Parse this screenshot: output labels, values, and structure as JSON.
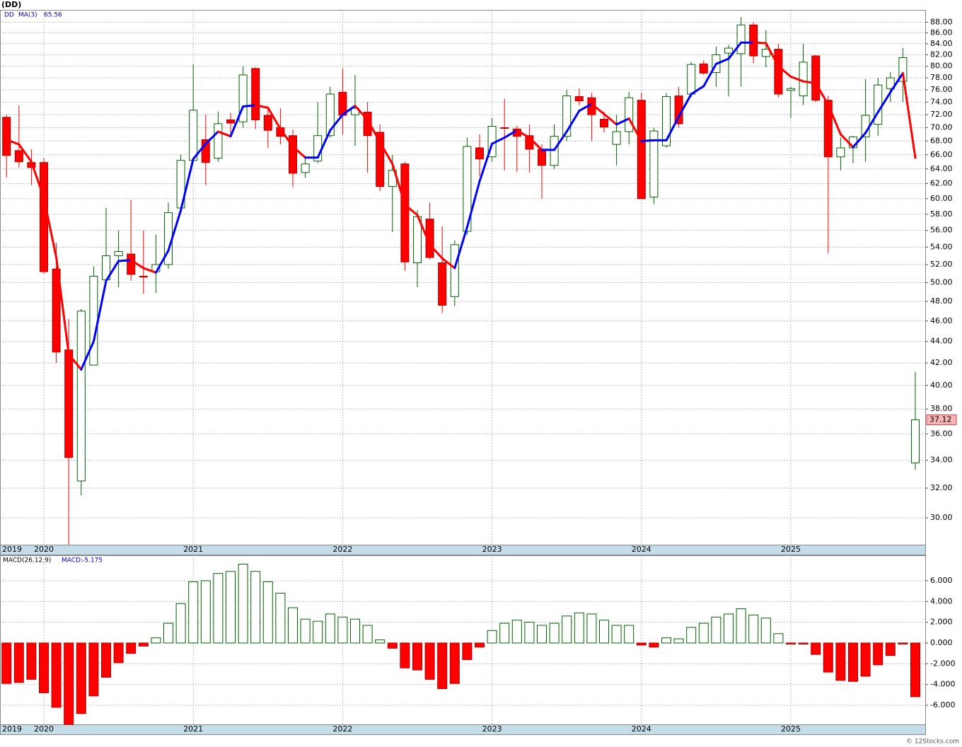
{
  "chart_data": [
    {
      "type": "candlestick",
      "title": "(DD)",
      "symbol": "DD",
      "log_scale": true,
      "grid": true,
      "categories": [
        "2019",
        null,
        null,
        "2020",
        null,
        null,
        null,
        null,
        null,
        null,
        null,
        null,
        null,
        null,
        null,
        "2021",
        null,
        null,
        null,
        null,
        null,
        null,
        null,
        null,
        null,
        null,
        null,
        "2022",
        null,
        null,
        null,
        null,
        null,
        null,
        null,
        null,
        null,
        null,
        null,
        "2023",
        null,
        null,
        null,
        null,
        null,
        null,
        null,
        null,
        null,
        null,
        null,
        "2024",
        null,
        null,
        null,
        null,
        null,
        null,
        null,
        null,
        null,
        null,
        null,
        "2025",
        null,
        null,
        null,
        null,
        null,
        null,
        null,
        null,
        null,
        null
      ],
      "open": [
        71.6,
        66.6,
        64.9,
        64.9,
        51.5,
        43.2,
        32.5,
        41.8,
        50.3,
        53.0,
        53.2,
        50.7,
        51.2,
        52.0,
        58.8,
        65.2,
        68.2,
        65.5,
        71.2,
        70.9,
        79.6,
        71.9,
        70.0,
        68.8,
        63.5,
        65.1,
        68.8,
        75.6,
        72.0,
        72.4,
        69.3,
        61.6,
        64.7,
        52.2,
        57.4,
        52.2,
        48.5,
        55.9,
        67.0,
        65.7,
        70.0,
        69.8,
        68.8,
        66.8,
        64.5,
        68.7,
        74.9,
        74.7,
        71.3,
        67.5,
        69.4,
        74.3,
        60.2,
        67.3,
        75.0,
        75.3,
        80.4,
        78.9,
        82.3,
        82.2,
        87.5,
        81.7,
        83.0,
        75.9,
        75.0,
        81.8,
        74.3,
        65.7,
        67.0,
        68.6,
        70.5,
        76.2,
        77.4,
        33.8
      ],
      "high": [
        72.0,
        73.5,
        66.8,
        65.5,
        54.5,
        46.2,
        47.2,
        51.8,
        58.8,
        56.0,
        59.8,
        56.0,
        55.5,
        59.5,
        66.0,
        80.3,
        72.0,
        72.5,
        72.3,
        80.0,
        79.8,
        73.0,
        73.0,
        69.7,
        65.8,
        74.0,
        76.5,
        79.6,
        78.5,
        74.0,
        70.5,
        66.0,
        65.0,
        58.5,
        59.5,
        56.5,
        54.8,
        68.5,
        69.0,
        71.5,
        74.5,
        70.3,
        70.5,
        67.5,
        70.5,
        76.0,
        76.2,
        75.5,
        72.5,
        72.0,
        75.7,
        75.5,
        70.0,
        75.5,
        76.5,
        80.7,
        81.0,
        83.5,
        83.8,
        89.0,
        88.0,
        86.5,
        84.0,
        76.5,
        84.0,
        82.0,
        75.0,
        68.5,
        68.8,
        77.8,
        78.0,
        79.0,
        83.2,
        41.2
      ],
      "low": [
        62.8,
        64.2,
        61.8,
        51.0,
        42.0,
        28.3,
        31.5,
        41.8,
        50.0,
        49.5,
        50.2,
        48.8,
        48.9,
        51.5,
        58.5,
        65.0,
        61.8,
        65.0,
        69.0,
        70.0,
        69.8,
        67.0,
        67.5,
        61.5,
        62.8,
        64.8,
        68.5,
        69.0,
        67.3,
        63.5,
        61.0,
        55.8,
        51.3,
        49.5,
        52.6,
        46.8,
        47.5,
        55.5,
        63.0,
        65.0,
        63.8,
        63.6,
        63.5,
        60.0,
        64.0,
        68.0,
        73.5,
        68.0,
        69.3,
        64.5,
        67.5,
        60.0,
        59.3,
        67.0,
        70.0,
        74.8,
        78.5,
        76.5,
        74.9,
        76.5,
        80.5,
        79.8,
        74.8,
        71.5,
        73.5,
        74.0,
        53.3,
        63.8,
        64.8,
        65.0,
        68.8,
        74.0,
        74.0,
        33.3
      ],
      "close": [
        65.9,
        65.0,
        64.2,
        51.2,
        43.0,
        34.2,
        47.0,
        50.7,
        53.0,
        53.5,
        50.9,
        50.6,
        52.0,
        58.2,
        65.2,
        72.7,
        64.9,
        70.6,
        70.7,
        78.5,
        71.2,
        69.6,
        68.7,
        63.4,
        64.7,
        68.8,
        75.3,
        71.9,
        73.0,
        68.8,
        61.6,
        63.8,
        52.3,
        57.7,
        52.8,
        47.6,
        54.3,
        67.2,
        65.4,
        70.2,
        69.9,
        68.7,
        66.8,
        64.5,
        68.7,
        75.0,
        74.2,
        72.0,
        70.1,
        69.4,
        74.7,
        60.0,
        69.5,
        74.9,
        70.6,
        80.3,
        78.8,
        82.0,
        83.2,
        87.5,
        81.8,
        83.0,
        75.3,
        76.2,
        80.7,
        74.3,
        65.7,
        67.0,
        68.6,
        71.9,
        76.8,
        78.0,
        81.5,
        37.12
      ],
      "up_color": "#006400",
      "down_color": "#ff0000",
      "ma": {
        "name": "MA(3)",
        "up_color": "#0000ff",
        "down_color": "#ff0000",
        "values": [
          68.2,
          67.5,
          65.0,
          60.1,
          52.8,
          42.8,
          41.4,
          44.0,
          50.2,
          52.4,
          52.5,
          51.6,
          51.1,
          53.6,
          58.5,
          65.4,
          67.6,
          69.4,
          68.7,
          73.3,
          73.5,
          73.1,
          69.8,
          67.2,
          65.6,
          65.6,
          69.6,
          72.0,
          73.4,
          71.2,
          67.8,
          64.7,
          59.2,
          57.9,
          54.3,
          52.7,
          51.6,
          56.4,
          62.3,
          67.6,
          68.5,
          69.6,
          68.5,
          66.7,
          66.7,
          69.4,
          72.6,
          73.7,
          72.1,
          70.5,
          71.4,
          68.0,
          68.1,
          68.1,
          71.7,
          75.3,
          76.6,
          80.4,
          81.3,
          84.2,
          84.2,
          84.1,
          80.0,
          78.2,
          77.4,
          77.1,
          73.6,
          69.0,
          67.1,
          69.2,
          72.4,
          75.6,
          78.8,
          65.56
        ]
      },
      "ylim": [
        28.3,
        90.4
      ],
      "yticks": [
        {
          "value": 30,
          "label": "30.00"
        },
        {
          "value": 32,
          "label": "32.00"
        },
        {
          "value": 34,
          "label": "34.00"
        },
        {
          "value": 36,
          "label": "36.00"
        },
        {
          "value": 38,
          "label": "38.00"
        },
        {
          "value": 40,
          "label": "40.00"
        },
        {
          "value": 42,
          "label": "42.00"
        },
        {
          "value": 44,
          "label": "44.00"
        },
        {
          "value": 46,
          "label": "46.00"
        },
        {
          "value": 48,
          "label": "48.00"
        },
        {
          "value": 50,
          "label": "50.00"
        },
        {
          "value": 52,
          "label": "52.00"
        },
        {
          "value": 54,
          "label": "54.00"
        },
        {
          "value": 56,
          "label": "56.00"
        },
        {
          "value": 58,
          "label": "58.00"
        },
        {
          "value": 60,
          "label": "60.00"
        },
        {
          "value": 62,
          "label": "62.00"
        },
        {
          "value": 64,
          "label": "64.00"
        },
        {
          "value": 66,
          "label": "66.00"
        },
        {
          "value": 68,
          "label": "68.00"
        },
        {
          "value": 70,
          "label": "70.00"
        },
        {
          "value": 72,
          "label": "72.00"
        },
        {
          "value": 74,
          "label": "74.00"
        },
        {
          "value": 76,
          "label": "76.00"
        },
        {
          "value": 78,
          "label": "78.00"
        },
        {
          "value": 80,
          "label": "80.00"
        },
        {
          "value": 82,
          "label": "82.00"
        },
        {
          "value": 84,
          "label": "84.00"
        },
        {
          "value": 86,
          "label": "86.00"
        },
        {
          "value": 88,
          "label": "88.00"
        }
      ]
    },
    {
      "type": "bar",
      "title": "MACD(26,12,9)",
      "value_name": "MACD:",
      "grid": true,
      "up_color": "#006400",
      "down_color": "#ff0000",
      "values": [
        -3.9,
        -3.8,
        -3.5,
        -4.8,
        -6.2,
        -7.9,
        -6.8,
        -5.1,
        -3.3,
        -1.9,
        -1.0,
        -0.3,
        0.5,
        1.9,
        3.8,
        5.9,
        6.0,
        6.7,
        6.9,
        7.6,
        6.9,
        5.9,
        4.8,
        3.4,
        2.3,
        2.1,
        2.8,
        2.5,
        2.3,
        1.7,
        0.3,
        -0.5,
        -2.4,
        -2.6,
        -3.5,
        -4.4,
        -3.9,
        -1.6,
        -0.4,
        1.2,
        1.9,
        2.2,
        2.0,
        1.7,
        1.9,
        2.6,
        2.9,
        2.8,
        2.2,
        1.7,
        1.7,
        -0.2,
        -0.4,
        0.5,
        0.4,
        1.5,
        1.9,
        2.5,
        2.8,
        3.3,
        2.7,
        2.4,
        0.9,
        -0.1,
        -0.1,
        -1.1,
        -2.8,
        -3.6,
        -3.7,
        -3.2,
        -2.1,
        -1.2,
        -0.1,
        -5.175
      ],
      "ylim": [
        -7.84,
        8.45
      ],
      "yticks": [
        {
          "value": -6,
          "label": "-6.000"
        },
        {
          "value": -4,
          "label": "-4.000"
        },
        {
          "value": -2,
          "label": "-2.000"
        },
        {
          "value": 0,
          "label": "0.000"
        },
        {
          "value": 2,
          "label": "2.000"
        },
        {
          "value": 4,
          "label": "4.000"
        },
        {
          "value": 6,
          "label": "6.000"
        }
      ]
    }
  ],
  "source": "© 12Stocks.com"
}
